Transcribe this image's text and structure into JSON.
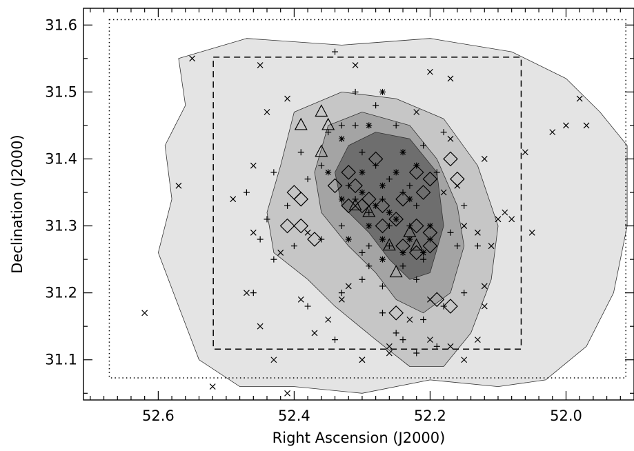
{
  "chart_data": {
    "type": "scatter",
    "title": "",
    "xlabel": "Right Ascension (J2000)",
    "ylabel": "Declination (J2000)",
    "xlim": [
      52.71,
      51.9
    ],
    "ylim": [
      31.04,
      31.625
    ],
    "x_reversed": true,
    "x_ticks": [
      "52.6",
      "52.4",
      "52.2",
      "52.0"
    ],
    "x_tick_values": [
      52.6,
      52.4,
      52.2,
      52.0
    ],
    "y_ticks": [
      "31.1",
      "31.2",
      "31.3",
      "31.4",
      "31.5",
      "31.6"
    ],
    "y_tick_values": [
      31.1,
      31.2,
      31.3,
      31.4,
      31.5,
      31.6
    ],
    "grid": false,
    "legend": "none",
    "background": "extinction contour map, four grayscale fill levels",
    "fill_colors": [
      "#e4e4e4",
      "#c6c6c6",
      "#a4a4a4",
      "#6e6e6e"
    ],
    "regions": [
      {
        "style": "dotted",
        "ra": [
          52.672,
          51.912
        ],
        "dec": [
          31.073,
          31.608
        ]
      },
      {
        "style": "dashed",
        "ra": [
          52.519,
          52.066
        ],
        "dec": [
          31.116,
          31.552
        ]
      }
    ],
    "contours": [
      {
        "level": 1,
        "points": [
          [
            52.57,
            31.55
          ],
          [
            52.47,
            31.58
          ],
          [
            52.33,
            31.57
          ],
          [
            52.2,
            31.58
          ],
          [
            52.08,
            31.56
          ],
          [
            52.0,
            31.52
          ],
          [
            51.95,
            31.47
          ],
          [
            51.91,
            31.42
          ],
          [
            51.91,
            31.3
          ],
          [
            51.93,
            31.2
          ],
          [
            51.97,
            31.12
          ],
          [
            52.03,
            31.07
          ],
          [
            52.1,
            31.06
          ],
          [
            52.2,
            31.07
          ],
          [
            52.3,
            31.05
          ],
          [
            52.4,
            31.06
          ],
          [
            52.48,
            31.06
          ],
          [
            52.54,
            31.1
          ],
          [
            52.57,
            31.18
          ],
          [
            52.6,
            31.26
          ],
          [
            52.58,
            31.34
          ],
          [
            52.59,
            31.42
          ],
          [
            52.56,
            31.48
          ]
        ]
      },
      {
        "level": 2,
        "points": [
          [
            52.4,
            31.47
          ],
          [
            52.33,
            31.5
          ],
          [
            52.25,
            31.49
          ],
          [
            52.18,
            31.46
          ],
          [
            52.13,
            31.39
          ],
          [
            52.1,
            31.3
          ],
          [
            52.11,
            31.22
          ],
          [
            52.14,
            31.14
          ],
          [
            52.18,
            31.09
          ],
          [
            52.23,
            31.09
          ],
          [
            52.28,
            31.13
          ],
          [
            52.34,
            31.18
          ],
          [
            52.38,
            31.22
          ],
          [
            52.43,
            31.26
          ],
          [
            52.44,
            31.32
          ],
          [
            52.42,
            31.39
          ]
        ]
      },
      {
        "level": 3,
        "points": [
          [
            52.35,
            31.45
          ],
          [
            52.3,
            31.47
          ],
          [
            52.23,
            31.45
          ],
          [
            52.19,
            31.4
          ],
          [
            52.16,
            31.33
          ],
          [
            52.15,
            31.27
          ],
          [
            52.17,
            31.2
          ],
          [
            52.21,
            31.17
          ],
          [
            52.25,
            31.19
          ],
          [
            52.28,
            31.23
          ],
          [
            52.32,
            31.27
          ],
          [
            52.36,
            31.32
          ],
          [
            52.37,
            31.38
          ]
        ]
      },
      {
        "level": 4,
        "points": [
          [
            52.32,
            31.42
          ],
          [
            52.28,
            31.44
          ],
          [
            52.23,
            31.43
          ],
          [
            52.19,
            31.38
          ],
          [
            52.18,
            31.3
          ],
          [
            52.2,
            31.23
          ],
          [
            52.23,
            31.22
          ],
          [
            52.26,
            31.25
          ],
          [
            52.29,
            31.29
          ],
          [
            52.33,
            31.33
          ],
          [
            52.34,
            31.38
          ]
        ]
      }
    ],
    "series": [
      {
        "name": "",
        "marker": "plus",
        "points": [
          [
            52.34,
            31.56
          ],
          [
            52.31,
            31.5
          ],
          [
            52.35,
            31.44
          ],
          [
            52.33,
            31.45
          ],
          [
            52.31,
            31.45
          ],
          [
            52.3,
            31.41
          ],
          [
            52.28,
            31.39
          ],
          [
            52.26,
            31.37
          ],
          [
            52.24,
            31.35
          ],
          [
            52.22,
            31.33
          ],
          [
            52.23,
            31.3
          ],
          [
            52.26,
            31.3
          ],
          [
            52.29,
            31.32
          ],
          [
            52.31,
            31.34
          ],
          [
            52.33,
            31.3
          ],
          [
            52.36,
            31.28
          ],
          [
            52.4,
            31.27
          ],
          [
            52.43,
            31.25
          ],
          [
            52.46,
            31.2
          ],
          [
            52.38,
            31.18
          ],
          [
            52.33,
            31.2
          ],
          [
            52.3,
            31.22
          ],
          [
            52.27,
            31.21
          ],
          [
            52.24,
            31.24
          ],
          [
            52.21,
            31.25
          ],
          [
            52.2,
            31.28
          ],
          [
            52.17,
            31.29
          ],
          [
            52.16,
            31.27
          ],
          [
            52.22,
            31.22
          ],
          [
            52.27,
            31.17
          ],
          [
            52.24,
            31.13
          ],
          [
            52.21,
            31.16
          ],
          [
            52.18,
            31.18
          ],
          [
            52.15,
            31.2
          ],
          [
            52.13,
            31.27
          ],
          [
            52.15,
            31.33
          ],
          [
            52.19,
            31.38
          ],
          [
            52.21,
            31.42
          ],
          [
            52.25,
            31.45
          ],
          [
            52.28,
            31.48
          ],
          [
            52.38,
            31.37
          ],
          [
            52.41,
            31.33
          ],
          [
            52.44,
            31.31
          ],
          [
            52.47,
            31.35
          ],
          [
            52.43,
            31.38
          ],
          [
            52.39,
            31.41
          ],
          [
            52.36,
            31.39
          ],
          [
            52.32,
            31.36
          ],
          [
            52.29,
            31.27
          ],
          [
            52.26,
            31.27
          ],
          [
            52.23,
            31.36
          ],
          [
            52.27,
            31.34
          ],
          [
            52.3,
            31.26
          ],
          [
            52.18,
            31.44
          ],
          [
            52.25,
            31.14
          ],
          [
            52.22,
            31.11
          ],
          [
            52.19,
            31.12
          ],
          [
            52.29,
            31.24
          ],
          [
            52.34,
            31.13
          ],
          [
            52.45,
            31.28
          ]
        ]
      },
      {
        "name": "",
        "marker": "cross",
        "points": [
          [
            52.55,
            31.55
          ],
          [
            52.45,
            31.54
          ],
          [
            52.31,
            31.54
          ],
          [
            52.2,
            31.53
          ],
          [
            52.17,
            31.52
          ],
          [
            52.44,
            31.47
          ],
          [
            52.41,
            31.49
          ],
          [
            52.12,
            31.4
          ],
          [
            52.06,
            31.41
          ],
          [
            51.98,
            31.49
          ],
          [
            51.97,
            31.45
          ],
          [
            52.0,
            31.45
          ],
          [
            52.02,
            31.44
          ],
          [
            52.57,
            31.36
          ],
          [
            52.49,
            31.34
          ],
          [
            52.46,
            31.29
          ],
          [
            52.42,
            31.26
          ],
          [
            52.39,
            31.19
          ],
          [
            52.47,
            31.2
          ],
          [
            52.45,
            31.15
          ],
          [
            52.43,
            31.1
          ],
          [
            52.37,
            31.14
          ],
          [
            52.35,
            31.16
          ],
          [
            52.32,
            31.21
          ],
          [
            52.3,
            31.1
          ],
          [
            52.26,
            31.12
          ],
          [
            52.23,
            31.16
          ],
          [
            52.17,
            31.12
          ],
          [
            52.13,
            31.13
          ],
          [
            52.12,
            31.21
          ],
          [
            52.11,
            31.27
          ],
          [
            52.1,
            31.31
          ],
          [
            52.13,
            31.29
          ],
          [
            52.15,
            31.3
          ],
          [
            52.18,
            31.35
          ],
          [
            52.22,
            31.47
          ],
          [
            52.16,
            31.36
          ],
          [
            52.09,
            31.32
          ],
          [
            52.62,
            31.17
          ],
          [
            52.52,
            31.06
          ],
          [
            52.41,
            31.05
          ],
          [
            52.3,
            31.1
          ],
          [
            52.26,
            31.11
          ],
          [
            52.15,
            31.1
          ],
          [
            52.12,
            31.18
          ],
          [
            52.08,
            31.31
          ],
          [
            52.05,
            31.29
          ],
          [
            52.17,
            31.43
          ],
          [
            52.2,
            31.19
          ],
          [
            52.38,
            31.29
          ],
          [
            52.46,
            31.39
          ],
          [
            52.33,
            31.19
          ],
          [
            52.2,
            31.13
          ]
        ]
      },
      {
        "name": "",
        "marker": "asterisk",
        "points": [
          [
            52.27,
            31.5
          ],
          [
            52.29,
            31.45
          ],
          [
            52.33,
            31.43
          ],
          [
            52.3,
            31.38
          ],
          [
            52.27,
            31.36
          ],
          [
            52.25,
            31.38
          ],
          [
            52.23,
            31.34
          ],
          [
            52.26,
            31.32
          ],
          [
            52.29,
            31.3
          ],
          [
            52.32,
            31.28
          ],
          [
            52.27,
            31.28
          ],
          [
            52.24,
            31.26
          ],
          [
            52.21,
            31.26
          ],
          [
            52.23,
            31.28
          ],
          [
            52.25,
            31.31
          ],
          [
            52.28,
            31.33
          ],
          [
            52.3,
            31.35
          ],
          [
            52.22,
            31.39
          ],
          [
            52.24,
            31.41
          ],
          [
            52.35,
            31.38
          ],
          [
            52.33,
            31.34
          ],
          [
            52.2,
            31.3
          ],
          [
            52.27,
            31.25
          ]
        ]
      },
      {
        "name": "",
        "marker": "triangle",
        "points": [
          [
            52.36,
            31.47
          ],
          [
            52.35,
            31.45
          ],
          [
            52.39,
            31.45
          ],
          [
            52.36,
            31.41
          ],
          [
            52.31,
            31.33
          ],
          [
            52.29,
            31.32
          ],
          [
            52.25,
            31.23
          ],
          [
            52.23,
            31.29
          ],
          [
            52.22,
            31.27
          ],
          [
            52.26,
            31.27
          ]
        ]
      },
      {
        "name": "",
        "marker": "diamond",
        "points": [
          [
            52.22,
            31.38
          ],
          [
            52.2,
            31.37
          ],
          [
            52.17,
            31.4
          ],
          [
            52.16,
            31.37
          ],
          [
            52.21,
            31.35
          ],
          [
            52.24,
            31.34
          ],
          [
            52.27,
            31.33
          ],
          [
            52.29,
            31.34
          ],
          [
            52.31,
            31.36
          ],
          [
            52.3,
            31.33
          ],
          [
            52.32,
            31.33
          ],
          [
            52.34,
            31.36
          ],
          [
            52.32,
            31.38
          ],
          [
            52.28,
            31.4
          ],
          [
            52.4,
            31.35
          ],
          [
            52.39,
            31.34
          ],
          [
            52.41,
            31.3
          ],
          [
            52.39,
            31.3
          ],
          [
            52.37,
            31.28
          ],
          [
            52.25,
            31.31
          ],
          [
            52.22,
            31.3
          ],
          [
            52.2,
            31.29
          ],
          [
            52.2,
            31.27
          ],
          [
            52.22,
            31.26
          ],
          [
            52.24,
            31.27
          ],
          [
            52.19,
            31.19
          ],
          [
            52.17,
            31.18
          ],
          [
            52.25,
            31.17
          ],
          [
            52.27,
            31.3
          ]
        ]
      }
    ]
  }
}
